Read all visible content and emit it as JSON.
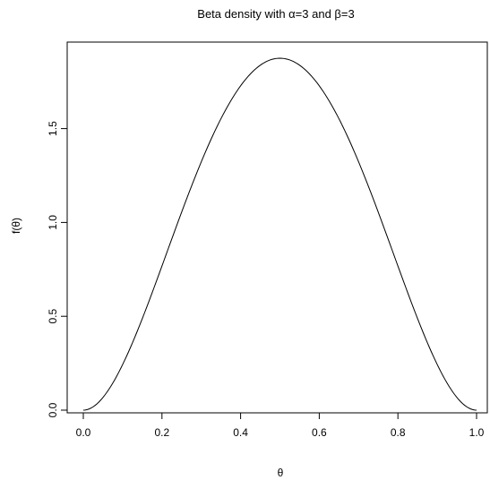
{
  "chart_data": {
    "type": "line",
    "title": "Beta density with α=3 and β=3",
    "xlabel": "θ",
    "ylabel": "f(θ)",
    "xlim": [
      0,
      1
    ],
    "ylim": [
      0,
      1.875
    ],
    "x_ticks": [
      0.0,
      0.2,
      0.4,
      0.6,
      0.8,
      1.0
    ],
    "x_tick_labels": [
      "0.0",
      "0.2",
      "0.4",
      "0.6",
      "0.8",
      "1.0"
    ],
    "y_ticks": [
      0.0,
      0.5,
      1.0,
      1.5
    ],
    "y_tick_labels": [
      "0.0",
      "0.5",
      "1.0",
      "1.5"
    ],
    "grid": false,
    "series": [
      {
        "x": [
          0.0,
          0.05,
          0.1,
          0.15,
          0.2,
          0.25,
          0.3,
          0.35,
          0.4,
          0.45,
          0.5,
          0.55,
          0.6,
          0.65,
          0.7,
          0.75,
          0.8,
          0.85,
          0.9,
          0.95,
          1.0
        ],
        "values": [
          0.0,
          0.0677,
          0.243,
          0.4877,
          0.768,
          1.0547,
          1.323,
          1.5526,
          1.728,
          1.8384,
          1.875,
          1.8384,
          1.728,
          1.5526,
          1.323,
          1.0547,
          0.768,
          0.4877,
          0.243,
          0.0677,
          0.0
        ],
        "color": "#000000"
      }
    ]
  }
}
